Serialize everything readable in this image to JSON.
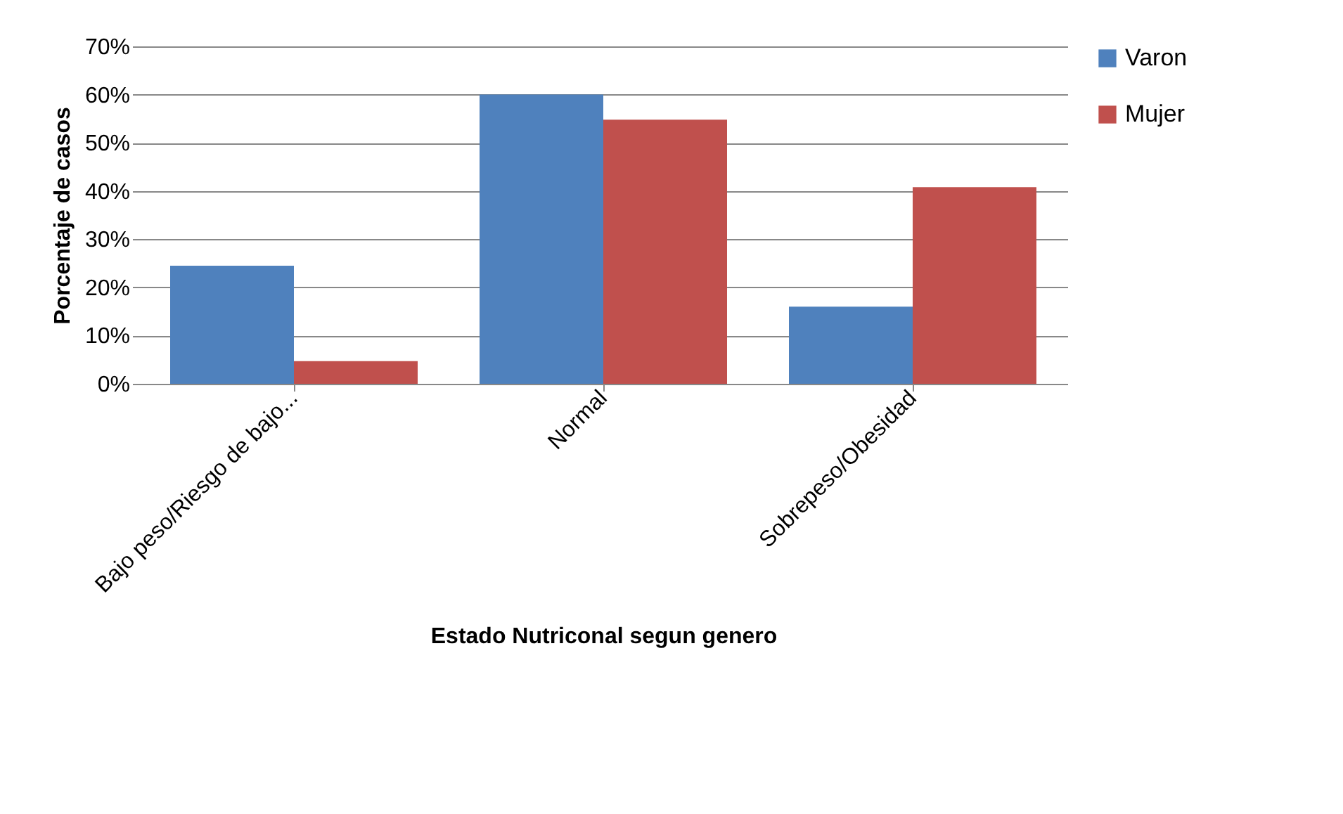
{
  "chart_data": {
    "type": "bar",
    "xlabel": "Estado Nutriconal  segun genero",
    "ylabel": "Porcentaje de casos",
    "categories": [
      "Bajo peso/Riesgo de bajo...",
      "Normal",
      "Sobrepeso/Obesidad"
    ],
    "series": [
      {
        "name": "Varon",
        "color": "#4f81bd",
        "values": [
          24.5,
          60,
          16
        ]
      },
      {
        "name": "Mujer",
        "color": "#c0504d",
        "values": [
          4.7,
          54.8,
          40.8
        ]
      }
    ],
    "ylim": [
      0,
      70
    ],
    "yticks": [
      {
        "value": 0,
        "label": "0%"
      },
      {
        "value": 10,
        "label": "10%"
      },
      {
        "value": 20,
        "label": "20%"
      },
      {
        "value": 30,
        "label": "30%"
      },
      {
        "value": 40,
        "label": "40%"
      },
      {
        "value": 50,
        "label": "50%"
      },
      {
        "value": 60,
        "label": "60%"
      },
      {
        "value": 70,
        "label": "70%"
      }
    ],
    "grid": "y",
    "legend": "right"
  }
}
